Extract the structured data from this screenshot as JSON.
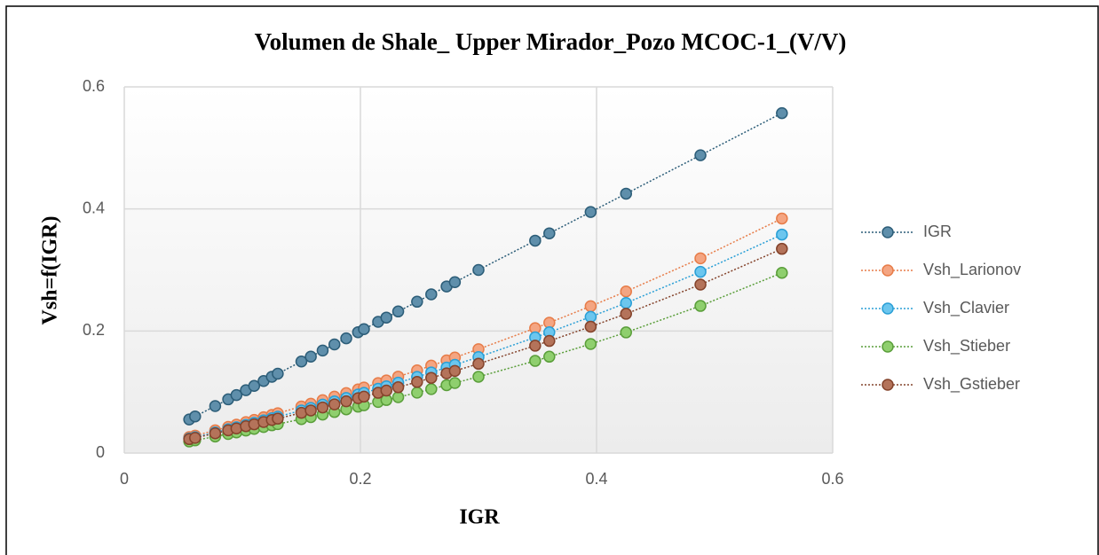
{
  "chart_data": {
    "type": "scatter_line",
    "title": "Volumen de Shale_ Upper Mirador_Pozo MCOC-1_(V/V)",
    "x_label": "IGR",
    "y_label": "Vsh=f(IGR)",
    "x": [
      0.055,
      0.06,
      0.077,
      0.088,
      0.095,
      0.103,
      0.11,
      0.118,
      0.125,
      0.13,
      0.15,
      0.158,
      0.168,
      0.178,
      0.188,
      0.198,
      0.203,
      0.215,
      0.222,
      0.232,
      0.248,
      0.26,
      0.273,
      0.28,
      0.3,
      0.348,
      0.36,
      0.395,
      0.425,
      0.488,
      0.557
    ],
    "series": [
      {
        "name": "IGR",
        "color": "#5f8fab",
        "edge_color": "#2c5d78",
        "values": [
          0.055,
          0.06,
          0.077,
          0.088,
          0.095,
          0.103,
          0.11,
          0.118,
          0.125,
          0.13,
          0.15,
          0.158,
          0.168,
          0.178,
          0.188,
          0.198,
          0.203,
          0.215,
          0.222,
          0.232,
          0.248,
          0.26,
          0.273,
          0.28,
          0.3,
          0.348,
          0.36,
          0.395,
          0.425,
          0.488,
          0.557
        ]
      },
      {
        "name": "Vsh_Larionov",
        "color": "#f4a582",
        "edge_color": "#e77c48",
        "values": [
          0.0261,
          0.0286,
          0.0372,
          0.0428,
          0.0465,
          0.0507,
          0.0543,
          0.0586,
          0.0624,
          0.0652,
          0.0763,
          0.0808,
          0.0866,
          0.0924,
          0.0982,
          0.1042,
          0.1073,
          0.1146,
          0.1189,
          0.1252,
          0.1354,
          0.1432,
          0.1518,
          0.1565,
          0.1702,
          0.2046,
          0.2136,
          0.2406,
          0.2648,
          0.3191,
          0.3843
        ]
      },
      {
        "name": "Vsh_Clavier",
        "color": "#6cc6ee",
        "edge_color": "#2a9fd6",
        "values": [
          0.0237,
          0.026,
          0.0338,
          0.039,
          0.0423,
          0.0461,
          0.0496,
          0.0535,
          0.057,
          0.0595,
          0.0698,
          0.074,
          0.0793,
          0.0847,
          0.0902,
          0.0958,
          0.0986,
          0.1054,
          0.1094,
          0.1153,
          0.1248,
          0.1321,
          0.1401,
          0.1445,
          0.1573,
          0.1895,
          0.1979,
          0.2232,
          0.2459,
          0.2969,
          0.358
        ]
      },
      {
        "name": "Vsh_Stieber",
        "color": "#8fcf6e",
        "edge_color": "#5a9e3a",
        "values": [
          0.019,
          0.0208,
          0.0271,
          0.0312,
          0.0338,
          0.0369,
          0.0396,
          0.0427,
          0.0455,
          0.0474,
          0.0556,
          0.0589,
          0.0631,
          0.0673,
          0.0716,
          0.076,
          0.0783,
          0.0837,
          0.0869,
          0.0915,
          0.099,
          0.1048,
          0.1112,
          0.1148,
          0.125,
          0.151,
          0.1579,
          0.1787,
          0.1977,
          0.2411,
          0.2953
        ]
      },
      {
        "name": "Vsh_Gstieber",
        "color": "#b4735a",
        "edge_color": "#84432b",
        "values": [
          0.0228,
          0.0249,
          0.0323,
          0.0372,
          0.0403,
          0.0439,
          0.0471,
          0.0508,
          0.0541,
          0.0564,
          0.0659,
          0.0698,
          0.0747,
          0.0797,
          0.0848,
          0.0899,
          0.0925,
          0.0987,
          0.1024,
          0.1078,
          0.1165,
          0.1232,
          0.1306,
          0.1346,
          0.1463,
          0.1759,
          0.1837,
          0.2071,
          0.2282,
          0.276,
          0.3346
        ]
      }
    ],
    "xlim": [
      0,
      0.6
    ],
    "xticks": [
      0,
      0.2,
      0.4,
      0.6
    ],
    "ylim": [
      0,
      0.6
    ],
    "yticks": [
      0,
      0.2,
      0.4,
      0.6
    ],
    "grid": true,
    "legend": "right"
  }
}
